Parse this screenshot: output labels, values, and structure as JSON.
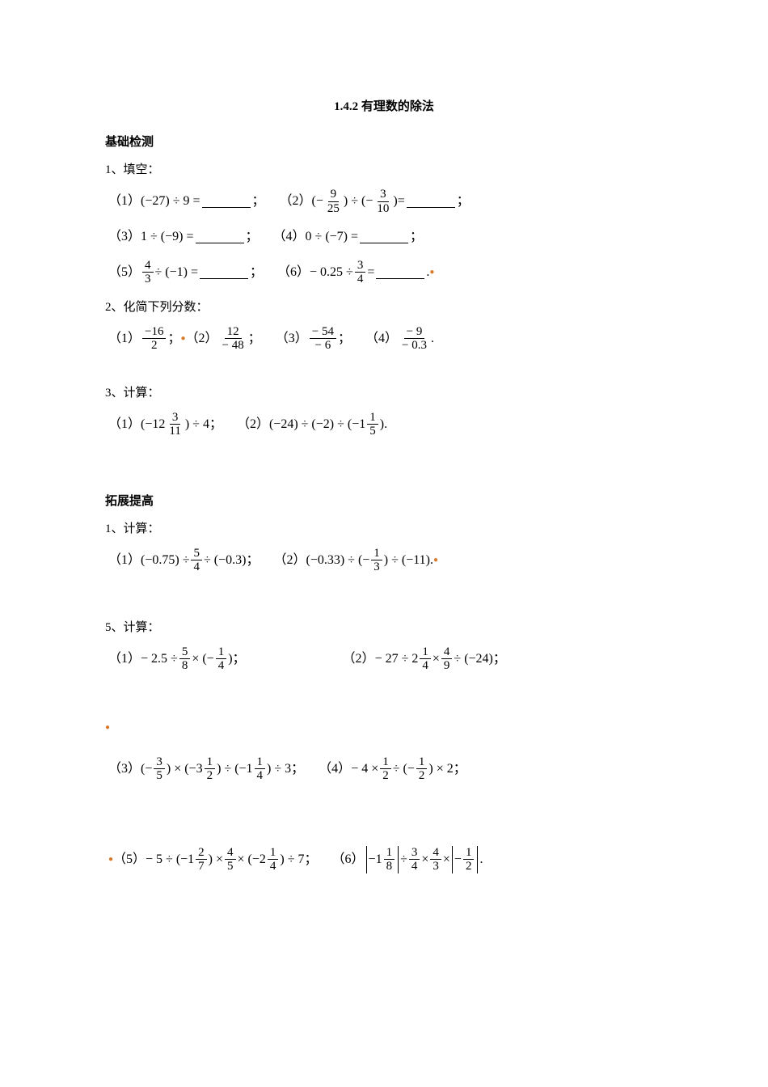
{
  "title": "1.4.2 有理数的除法",
  "section1": {
    "heading": "基础检测",
    "q1": {
      "label": "1、填空：",
      "p1_label": "（1）",
      "p1_expr": "(−27) ÷ 9 =",
      "p2_label": "（2）",
      "p2_lp": "(−",
      "p2_f1n": "9",
      "p2_f1d": "25",
      "p2_mid": ") ÷ (−",
      "p2_f2n": "3",
      "p2_f2d": "10",
      "p2_rp": ")=",
      "p3_label": "（3）",
      "p3_expr": "1 ÷ (−9) =",
      "p4_label": "（4）",
      "p4_expr": "0 ÷ (−7) =",
      "p5_label": "（5）",
      "p5_f1n": "4",
      "p5_f1d": "3",
      "p5_mid": "÷ (−1) =",
      "p6_label": "（6）",
      "p6_a": "− 0.25 ÷",
      "p6_f1n": "3",
      "p6_f1d": "4",
      "p6_b": "=",
      "end_punct_semi": "；",
      "end_punct_period": "."
    },
    "q2": {
      "label": "2、化简下列分数：",
      "p1_label": "（1）",
      "p1_n": "−16",
      "p1_d": "2",
      "p2_label": "（2）",
      "p2_n": "12",
      "p2_d": "− 48",
      "p3_label": "（3）",
      "p3_n": "− 54",
      "p3_d": "− 6",
      "p4_label": "（4）",
      "p4_n": "− 9",
      "p4_d": "− 0.3",
      "sep": "；",
      "end": "."
    },
    "q3": {
      "label": "3、计算：",
      "p1_label": "（1）",
      "p1_a": "(−12",
      "p1_f1n": "3",
      "p1_f1d": "11",
      "p1_b": ") ÷ 4",
      "p2_label": "（2）",
      "p2_a": "(−24) ÷ (−2) ÷ (−1",
      "p2_f1n": "1",
      "p2_f1d": "5",
      "p2_b": ")",
      "sep": "；",
      "end": "."
    }
  },
  "section2": {
    "heading": "拓展提高",
    "q1": {
      "label": "1、计算：",
      "p1_label": "（1）",
      "p1_a": "(−0.75) ÷",
      "p1_f1n": "5",
      "p1_f1d": "4",
      "p1_b": "÷ (−0.3)",
      "p2_label": "（2）",
      "p2_a": "(−0.33) ÷ (−",
      "p2_f1n": "1",
      "p2_f1d": "3",
      "p2_b": ") ÷ (−11)",
      "sep": "；",
      "end": "."
    },
    "q5": {
      "label": "5、计算：",
      "p1_label": "（1）",
      "p1_a": "− 2.5 ÷",
      "p1_f1n": "5",
      "p1_f1d": "8",
      "p1_b": "× (−",
      "p1_f2n": "1",
      "p1_f2d": "4",
      "p1_c": ")",
      "p2_label": "（2）",
      "p2_a": "− 27 ÷ 2",
      "p2_f1n": "1",
      "p2_f1d": "4",
      "p2_b": "×",
      "p2_f2n": "4",
      "p2_f2d": "9",
      "p2_c": "÷ (−24)",
      "p3_label": "（3）",
      "p3_a": "(−",
      "p3_f1n": "3",
      "p3_f1d": "5",
      "p3_b": ") × (−3",
      "p3_f2n": "1",
      "p3_f2d": "2",
      "p3_c": ") ÷ (−1",
      "p3_f3n": "1",
      "p3_f3d": "4",
      "p3_d": ") ÷ 3",
      "p4_label": "（4）",
      "p4_a": "− 4 ×",
      "p4_f1n": "1",
      "p4_f1d": "2",
      "p4_b": "÷ (−",
      "p4_f2n": "1",
      "p4_f2d": "2",
      "p4_c": ") × 2",
      "p5_label": "（5）",
      "p5_a": "− 5 ÷ (−1",
      "p5_f1n": "2",
      "p5_f1d": "7",
      "p5_b": ") ×",
      "p5_f2n": "4",
      "p5_f2d": "5",
      "p5_c": "× (−2",
      "p5_f3n": "1",
      "p5_f3d": "4",
      "p5_d": ") ÷ 7",
      "p6_label": "（6）",
      "p6_a": "−1",
      "p6_f1n": "1",
      "p6_f1d": "8",
      "p6_b": "÷",
      "p6_f2n": "3",
      "p6_f2d": "4",
      "p6_c": "×",
      "p6_f3n": "4",
      "p6_f3d": "3",
      "p6_d": "×",
      "p6_e": "−",
      "p6_f4n": "1",
      "p6_f4d": "2",
      "sep": "；",
      "end": "."
    }
  }
}
